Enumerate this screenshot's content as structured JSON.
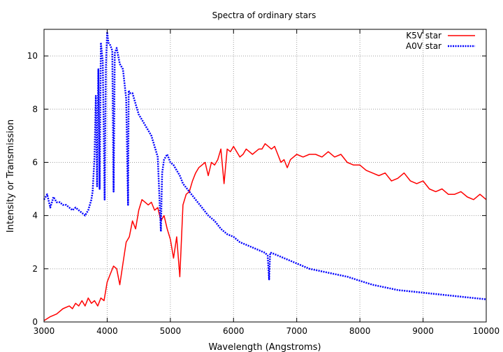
{
  "chart_data": {
    "type": "line",
    "title": "Spectra of ordinary stars",
    "xlabel": "Wavelength (Angstroms)",
    "ylabel": "Intensity or Transmission",
    "xlim": [
      3000,
      10000
    ],
    "ylim": [
      0,
      11
    ],
    "x_ticks": [
      3000,
      4000,
      5000,
      6000,
      7000,
      8000,
      9000,
      10000
    ],
    "y_ticks": [
      0,
      2,
      4,
      6,
      8,
      10
    ],
    "grid": true,
    "legend": "top-right",
    "series": [
      {
        "name": "K5V star",
        "color": "#ff0000",
        "style": "solid",
        "x": [
          3000,
          3100,
          3200,
          3300,
          3400,
          3450,
          3500,
          3550,
          3600,
          3650,
          3700,
          3750,
          3800,
          3850,
          3900,
          3950,
          4000,
          4050,
          4100,
          4150,
          4200,
          4250,
          4300,
          4350,
          4400,
          4450,
          4500,
          4550,
          4600,
          4650,
          4700,
          4750,
          4800,
          4850,
          4900,
          4950,
          5000,
          5050,
          5100,
          5150,
          5200,
          5250,
          5300,
          5350,
          5400,
          5450,
          5500,
          5550,
          5600,
          5650,
          5700,
          5750,
          5800,
          5850,
          5900,
          5950,
          6000,
          6050,
          6100,
          6150,
          6200,
          6250,
          6300,
          6350,
          6400,
          6450,
          6500,
          6550,
          6600,
          6650,
          6700,
          6750,
          6800,
          6850,
          6900,
          6950,
          7000,
          7100,
          7200,
          7300,
          7400,
          7500,
          7600,
          7700,
          7800,
          7900,
          8000,
          8100,
          8200,
          8300,
          8400,
          8500,
          8600,
          8700,
          8800,
          8900,
          9000,
          9100,
          9200,
          9300,
          9400,
          9500,
          9600,
          9700,
          9800,
          9900,
          10000
        ],
        "y": [
          0.05,
          0.2,
          0.3,
          0.5,
          0.6,
          0.5,
          0.7,
          0.6,
          0.8,
          0.6,
          0.9,
          0.7,
          0.8,
          0.6,
          0.9,
          0.8,
          1.5,
          1.8,
          2.1,
          2.0,
          1.4,
          2.2,
          3.0,
          3.2,
          3.8,
          3.5,
          4.2,
          4.6,
          4.5,
          4.4,
          4.5,
          4.2,
          4.3,
          3.8,
          4.0,
          3.5,
          3.1,
          2.4,
          3.2,
          1.7,
          4.4,
          4.8,
          4.9,
          5.3,
          5.6,
          5.8,
          5.9,
          6.0,
          5.5,
          6.0,
          5.9,
          6.1,
          6.5,
          5.2,
          6.5,
          6.4,
          6.6,
          6.4,
          6.2,
          6.3,
          6.5,
          6.4,
          6.3,
          6.4,
          6.5,
          6.5,
          6.7,
          6.6,
          6.5,
          6.6,
          6.3,
          6.0,
          6.1,
          5.8,
          6.1,
          6.2,
          6.3,
          6.2,
          6.3,
          6.3,
          6.2,
          6.4,
          6.2,
          6.3,
          6.0,
          5.9,
          5.9,
          5.7,
          5.6,
          5.5,
          5.6,
          5.3,
          5.4,
          5.6,
          5.3,
          5.2,
          5.3,
          5.0,
          4.9,
          5.0,
          4.8,
          4.8,
          4.9,
          4.7,
          4.6,
          4.8,
          4.6
        ]
      },
      {
        "name": "A0V star",
        "color": "#0000ff",
        "style": "dotted",
        "x": [
          3000,
          3050,
          3100,
          3150,
          3200,
          3250,
          3300,
          3350,
          3400,
          3450,
          3500,
          3550,
          3600,
          3650,
          3700,
          3750,
          3770,
          3800,
          3820,
          3840,
          3860,
          3880,
          3900,
          3930,
          3960,
          3980,
          4000,
          4020,
          4050,
          4080,
          4101,
          4120,
          4150,
          4200,
          4250,
          4300,
          4330,
          4340,
          4360,
          4400,
          4450,
          4500,
          4550,
          4600,
          4650,
          4700,
          4750,
          4800,
          4830,
          4850,
          4861,
          4870,
          4900,
          4950,
          5000,
          5050,
          5100,
          5150,
          5200,
          5300,
          5400,
          5500,
          5600,
          5700,
          5800,
          5900,
          6000,
          6100,
          6200,
          6300,
          6400,
          6500,
          6540,
          6563,
          6580,
          6600,
          6700,
          6800,
          6900,
          7000,
          7200,
          7400,
          7600,
          7800,
          8000,
          8200,
          8400,
          8600,
          8800,
          9000,
          9200,
          9400,
          9600,
          9800,
          10000
        ],
        "y": [
          4.6,
          4.8,
          4.3,
          4.7,
          4.5,
          4.5,
          4.4,
          4.4,
          4.3,
          4.2,
          4.3,
          4.2,
          4.1,
          4.0,
          4.2,
          4.6,
          4.9,
          6.2,
          8.5,
          5.1,
          9.5,
          5.0,
          10.5,
          9.8,
          4.6,
          9.6,
          10.9,
          10.5,
          10.4,
          10.2,
          4.9,
          10.1,
          10.3,
          9.7,
          9.5,
          8.4,
          4.4,
          8.7,
          8.6,
          8.6,
          8.2,
          7.8,
          7.6,
          7.4,
          7.2,
          7.0,
          6.6,
          6.2,
          4.5,
          3.4,
          4.7,
          5.6,
          6.1,
          6.3,
          6.0,
          5.9,
          5.7,
          5.5,
          5.2,
          4.9,
          4.6,
          4.3,
          4.0,
          3.8,
          3.5,
          3.3,
          3.2,
          3.0,
          2.9,
          2.8,
          2.7,
          2.6,
          2.5,
          1.6,
          2.6,
          2.6,
          2.5,
          2.4,
          2.3,
          2.2,
          2.0,
          1.9,
          1.8,
          1.7,
          1.55,
          1.4,
          1.3,
          1.2,
          1.15,
          1.1,
          1.05,
          1.0,
          0.95,
          0.9,
          0.85
        ]
      }
    ]
  }
}
